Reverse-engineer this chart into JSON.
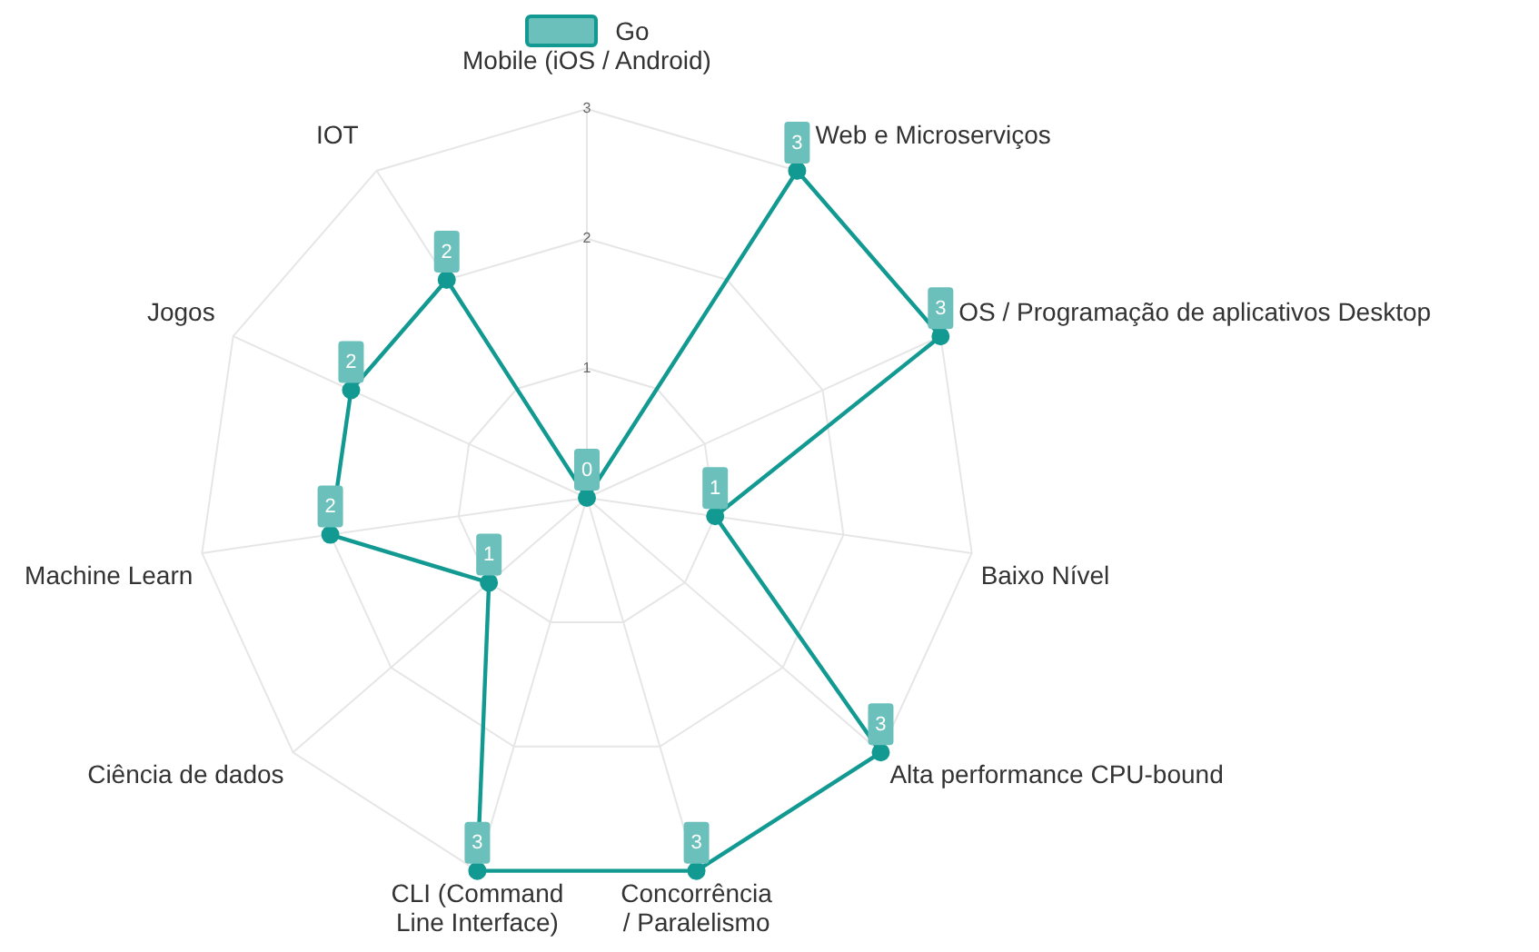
{
  "chart_data": {
    "type": "radar",
    "categories": [
      "Mobile (iOS / Android)",
      "Web e Microserviços",
      "OS / Programação de aplicativos Desktop",
      "Baixo Nível",
      "Alta performance CPU-bound",
      "Concorrência / Paralelismo",
      "CLI (Command Line Interface)",
      "Ciência de dados",
      "Machine Learn",
      "Jogos",
      "IOT"
    ],
    "series": [
      {
        "name": "Go",
        "color": "#129a92",
        "values": [
          0,
          3,
          3,
          1,
          3,
          3,
          3,
          1,
          2,
          2,
          2
        ]
      }
    ],
    "ylim": [
      0,
      3
    ],
    "yticks": [
      1,
      2,
      3
    ],
    "grid": true,
    "legend": "top",
    "marker": "circle",
    "data_labels": true
  }
}
